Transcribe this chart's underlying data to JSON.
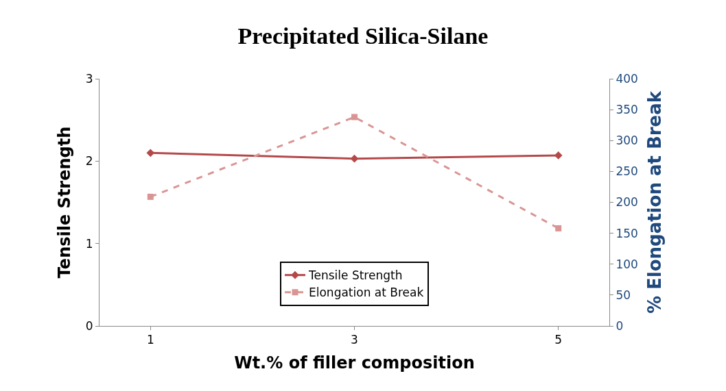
{
  "chart_data": {
    "type": "line",
    "title": "Precipitated Silica-Silane",
    "xlabel": "Wt.% of filler composition",
    "ylabel": "Tensile Strength",
    "y2label": "% Elongation at Break",
    "categories": [
      "1",
      "3",
      "5"
    ],
    "series": [
      {
        "name": "Tensile Strength",
        "color": "#b5494a",
        "values": [
          2.1,
          2.03,
          2.07
        ],
        "marker": "diamond",
        "line_style": "solid"
      },
      {
        "name": "Elongation at Break",
        "color": "#d99594",
        "values": [
          209,
          338,
          158
        ],
        "marker": "square",
        "line_style": "dashed",
        "axis": "y2"
      }
    ],
    "ylim": [
      0,
      3
    ],
    "yticks": [
      0,
      1,
      2,
      3
    ],
    "y2lim": [
      0,
      400
    ],
    "y2ticks": [
      0,
      50,
      100,
      150,
      200,
      250,
      300,
      350,
      400
    ],
    "legend": "bottom"
  }
}
